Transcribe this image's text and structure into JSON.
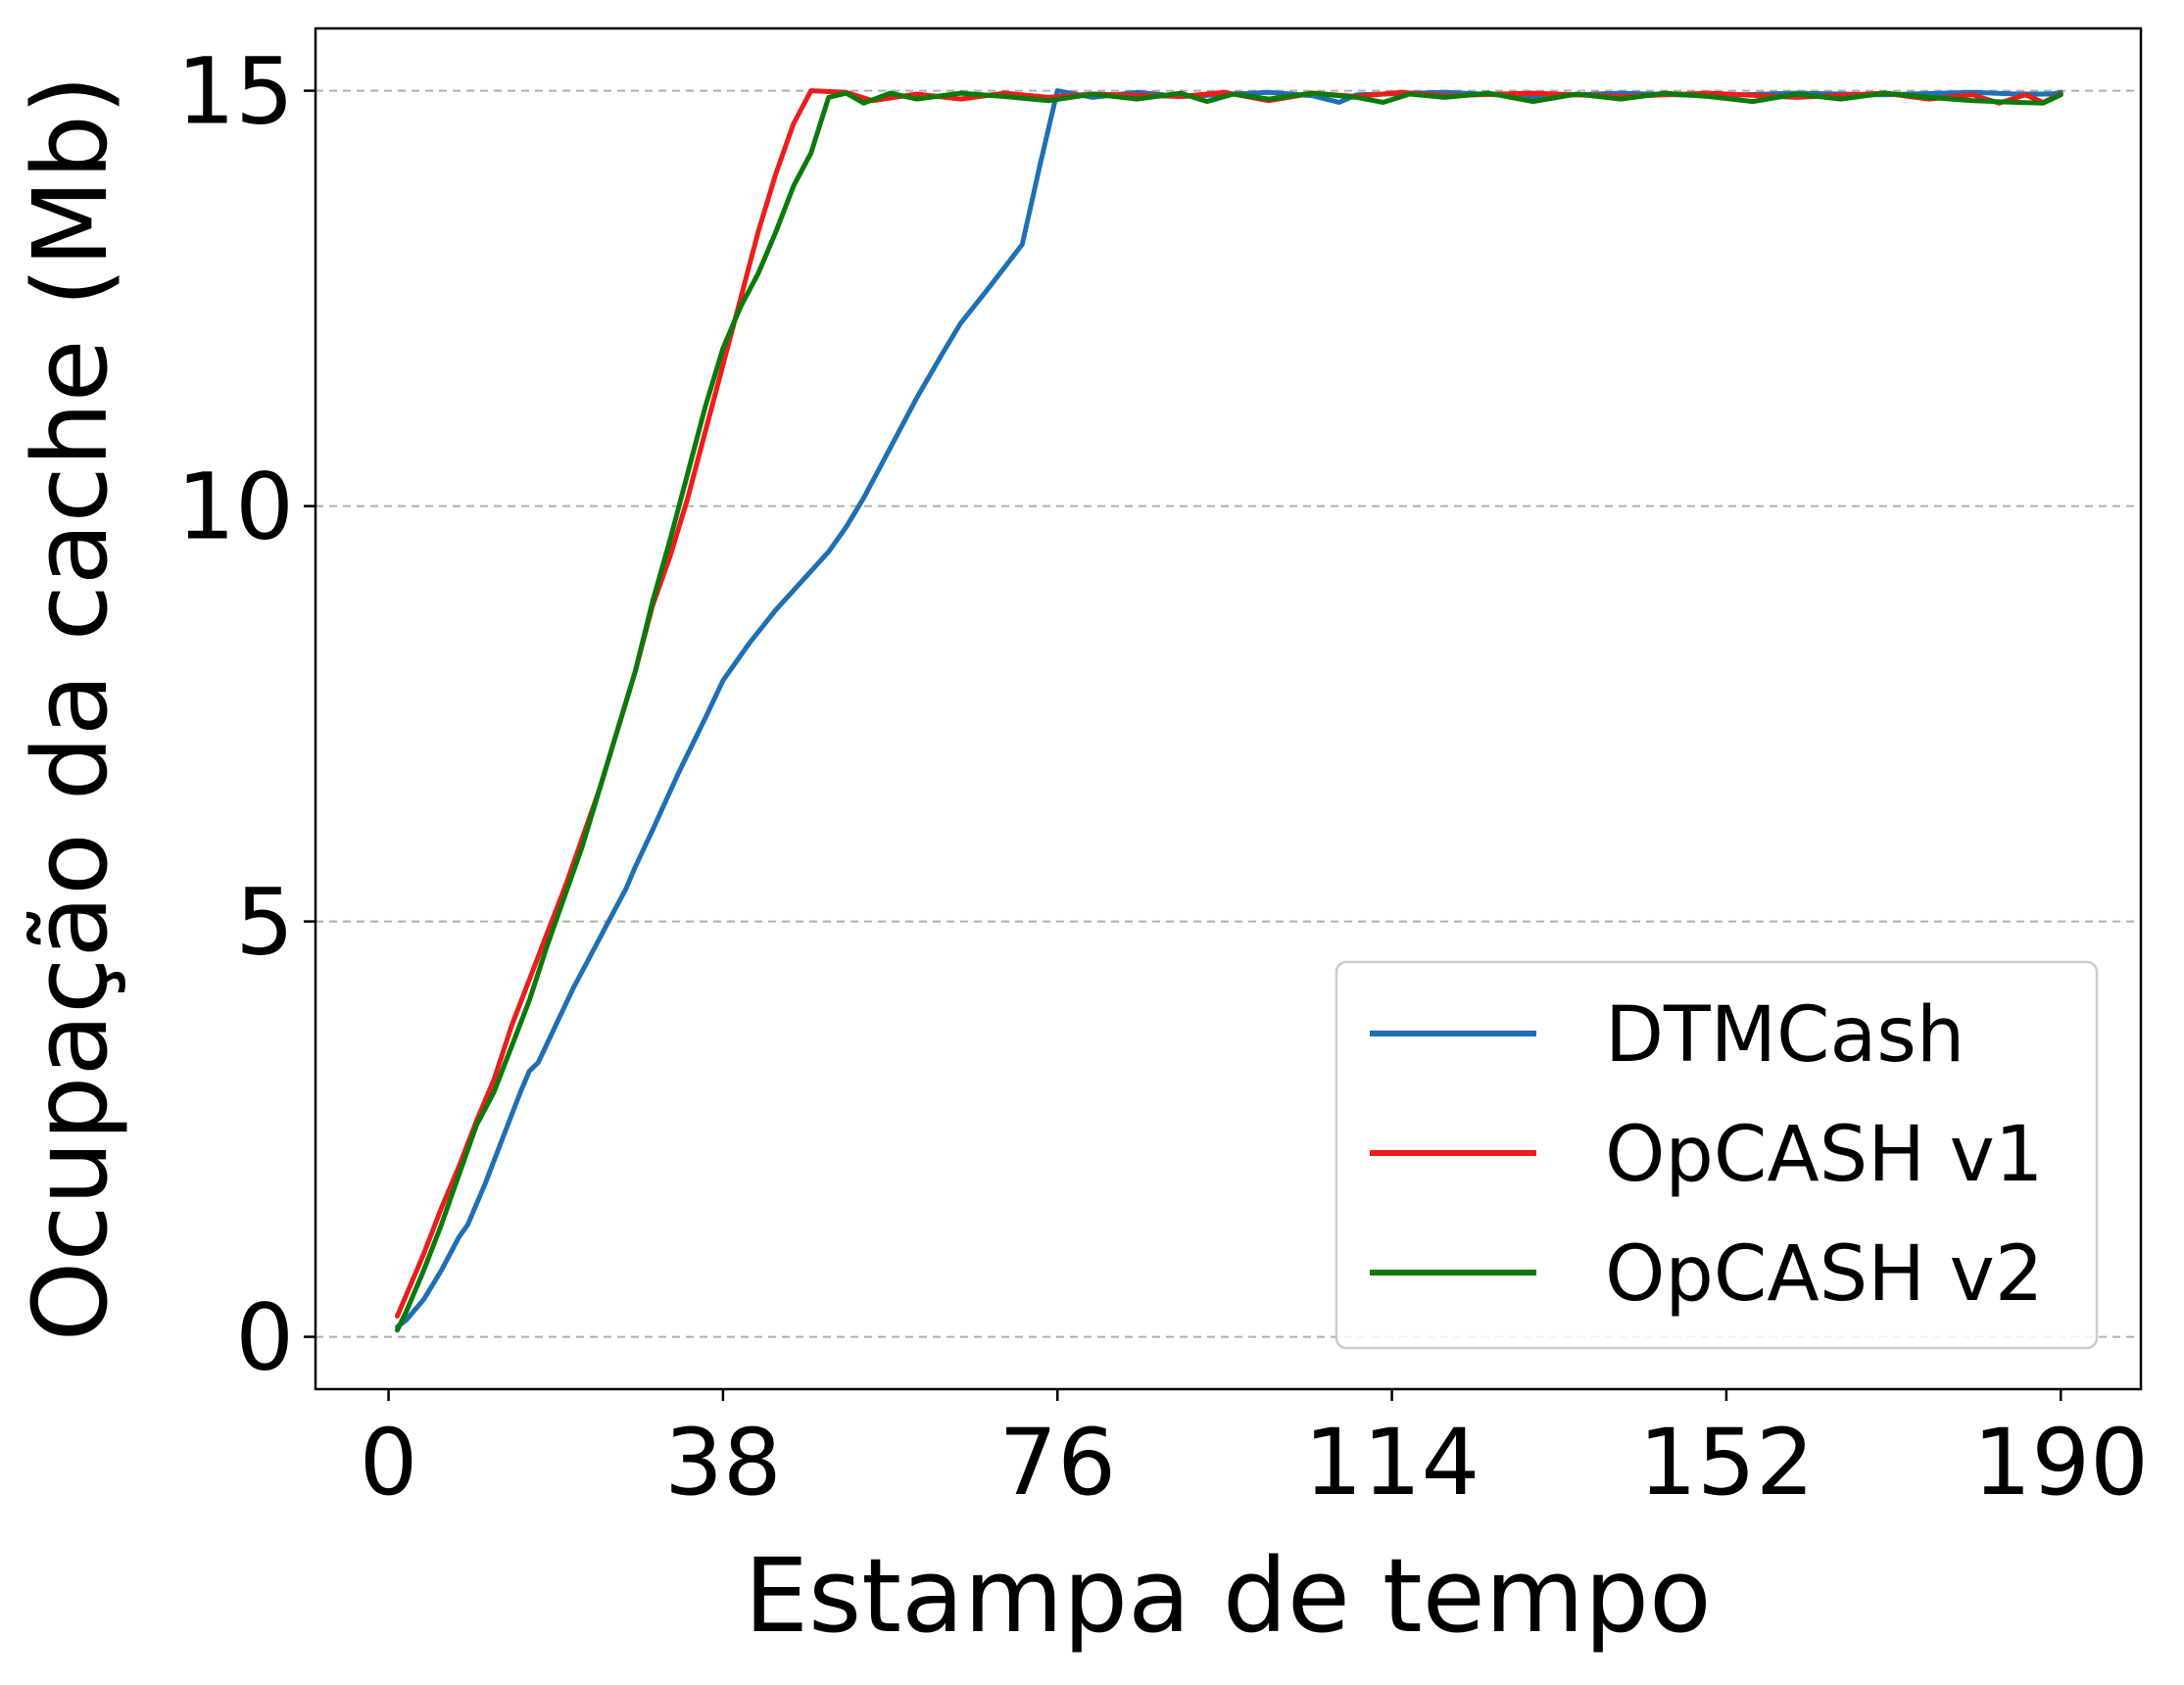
{
  "chart_data": {
    "type": "line",
    "title": "",
    "xlabel": "Estampa de tempo",
    "ylabel": "Ocupação da cache (Mb)",
    "xlim": [
      -8.3,
      199.1
    ],
    "ylim": [
      -0.63,
      15.75
    ],
    "x_ticks": [
      0,
      38,
      76,
      114,
      152,
      190
    ],
    "x_tick_labels": [
      "0",
      "38",
      "76",
      "114",
      "152",
      "190"
    ],
    "y_ticks": [
      0,
      5,
      10,
      15
    ],
    "y_tick_labels": [
      "0",
      "5",
      "10",
      "15"
    ],
    "grid": "y-dashed",
    "legend_position": "lower right",
    "series": [
      {
        "name": "DTMCash",
        "color": "#1f6fb4",
        "points": [
          [
            1,
            0.12
          ],
          [
            2,
            0.2
          ],
          [
            4,
            0.45
          ],
          [
            6,
            0.8
          ],
          [
            8,
            1.2
          ],
          [
            9,
            1.35
          ],
          [
            11,
            1.85
          ],
          [
            13,
            2.4
          ],
          [
            15,
            2.95
          ],
          [
            16,
            3.2
          ],
          [
            17,
            3.3
          ],
          [
            19,
            3.75
          ],
          [
            21,
            4.2
          ],
          [
            23,
            4.6
          ],
          [
            25,
            5.0
          ],
          [
            27,
            5.4
          ],
          [
            28,
            5.65
          ],
          [
            30,
            6.1
          ],
          [
            33,
            6.8
          ],
          [
            36,
            7.45
          ],
          [
            38,
            7.9
          ],
          [
            41,
            8.35
          ],
          [
            44,
            8.75
          ],
          [
            47,
            9.1
          ],
          [
            50,
            9.45
          ],
          [
            52,
            9.75
          ],
          [
            54,
            10.1
          ],
          [
            57,
            10.7
          ],
          [
            60,
            11.3
          ],
          [
            63,
            11.85
          ],
          [
            65,
            12.2
          ],
          [
            68,
            12.6
          ],
          [
            72,
            13.15
          ],
          [
            74,
            14.1
          ],
          [
            76,
            15.0
          ],
          [
            80,
            14.92
          ],
          [
            85,
            14.98
          ],
          [
            90,
            14.93
          ],
          [
            100,
            14.98
          ],
          [
            105,
            14.94
          ],
          [
            108,
            14.86
          ],
          [
            110,
            14.95
          ],
          [
            120,
            14.98
          ],
          [
            130,
            14.93
          ],
          [
            140,
            14.97
          ],
          [
            150,
            14.94
          ],
          [
            160,
            14.97
          ],
          [
            170,
            14.95
          ],
          [
            180,
            14.98
          ],
          [
            185,
            14.96
          ],
          [
            189,
            14.96
          ],
          [
            190,
            14.98
          ]
        ]
      },
      {
        "name": "OpCASH v1",
        "color": "#ee1c1c",
        "points": [
          [
            1,
            0.25
          ],
          [
            2,
            0.5
          ],
          [
            4,
            1.0
          ],
          [
            6,
            1.55
          ],
          [
            8,
            2.05
          ],
          [
            10,
            2.6
          ],
          [
            12,
            3.1
          ],
          [
            14,
            3.75
          ],
          [
            16,
            4.3
          ],
          [
            18,
            4.85
          ],
          [
            20,
            5.4
          ],
          [
            22,
            6.0
          ],
          [
            24,
            6.6
          ],
          [
            26,
            7.3
          ],
          [
            28,
            8.0
          ],
          [
            30,
            8.8
          ],
          [
            32,
            9.4
          ],
          [
            34,
            10.1
          ],
          [
            36,
            10.9
          ],
          [
            38,
            11.7
          ],
          [
            40,
            12.5
          ],
          [
            42,
            13.3
          ],
          [
            44,
            14.0
          ],
          [
            46,
            14.6
          ],
          [
            48,
            15.0
          ],
          [
            52,
            14.98
          ],
          [
            55,
            14.88
          ],
          [
            60,
            14.96
          ],
          [
            65,
            14.9
          ],
          [
            70,
            14.97
          ],
          [
            75,
            14.92
          ],
          [
            80,
            14.96
          ],
          [
            90,
            14.93
          ],
          [
            95,
            14.98
          ],
          [
            100,
            14.88
          ],
          [
            105,
            14.97
          ],
          [
            110,
            14.93
          ],
          [
            115,
            14.98
          ],
          [
            120,
            14.94
          ],
          [
            130,
            14.97
          ],
          [
            140,
            14.93
          ],
          [
            150,
            14.97
          ],
          [
            160,
            14.92
          ],
          [
            170,
            14.97
          ],
          [
            175,
            14.9
          ],
          [
            180,
            14.95
          ],
          [
            183,
            14.85
          ],
          [
            186,
            14.95
          ],
          [
            188,
            14.86
          ],
          [
            190,
            14.96
          ]
        ]
      },
      {
        "name": "OpCASH v2",
        "color": "#0a7a0a",
        "points": [
          [
            1,
            0.08
          ],
          [
            2,
            0.3
          ],
          [
            4,
            0.8
          ],
          [
            6,
            1.35
          ],
          [
            8,
            1.95
          ],
          [
            10,
            2.55
          ],
          [
            12,
            2.95
          ],
          [
            14,
            3.5
          ],
          [
            16,
            4.05
          ],
          [
            18,
            4.7
          ],
          [
            20,
            5.3
          ],
          [
            22,
            5.9
          ],
          [
            24,
            6.6
          ],
          [
            26,
            7.3
          ],
          [
            28,
            8.0
          ],
          [
            30,
            8.85
          ],
          [
            32,
            9.6
          ],
          [
            34,
            10.4
          ],
          [
            36,
            11.2
          ],
          [
            38,
            11.9
          ],
          [
            40,
            12.4
          ],
          [
            42,
            12.8
          ],
          [
            44,
            13.3
          ],
          [
            46,
            13.85
          ],
          [
            48,
            14.25
          ],
          [
            50,
            14.92
          ],
          [
            52,
            14.97
          ],
          [
            54,
            14.85
          ],
          [
            57,
            14.97
          ],
          [
            60,
            14.9
          ],
          [
            65,
            14.97
          ],
          [
            70,
            14.93
          ],
          [
            75,
            14.88
          ],
          [
            80,
            14.96
          ],
          [
            85,
            14.9
          ],
          [
            90,
            14.97
          ],
          [
            93,
            14.87
          ],
          [
            96,
            14.96
          ],
          [
            100,
            14.9
          ],
          [
            105,
            14.97
          ],
          [
            110,
            14.92
          ],
          [
            113,
            14.86
          ],
          [
            116,
            14.96
          ],
          [
            120,
            14.92
          ],
          [
            125,
            14.97
          ],
          [
            130,
            14.87
          ],
          [
            135,
            14.96
          ],
          [
            140,
            14.9
          ],
          [
            145,
            14.97
          ],
          [
            150,
            14.93
          ],
          [
            155,
            14.87
          ],
          [
            160,
            14.96
          ],
          [
            165,
            14.9
          ],
          [
            170,
            14.97
          ],
          [
            175,
            14.92
          ],
          [
            180,
            14.88
          ],
          [
            185,
            14.86
          ],
          [
            188,
            14.85
          ],
          [
            190,
            14.95
          ]
        ]
      }
    ]
  }
}
